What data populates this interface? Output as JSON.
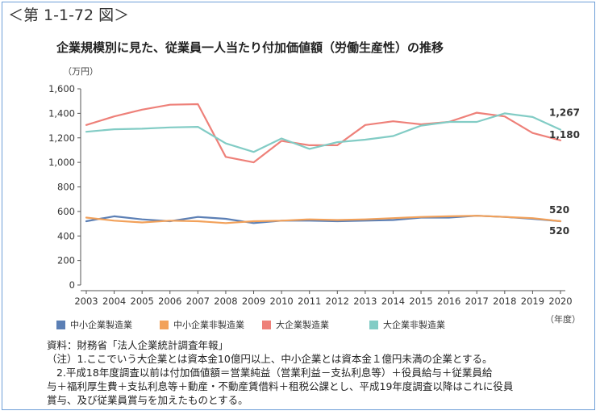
{
  "figure_number": "＜第 1-1-72 図＞",
  "notes": {
    "source": "資料：財務省「法人企業統計調査年報」",
    "note1": "（注）1.ここでいう大企業とは資本金10億円以上、中小企業とは資本金１億円未満の企業とする。",
    "note2_line1": "2.平成18年度調査以前は付加価値額＝営業純益（営業利益－支払利息等）＋役員給与＋従業員給",
    "note2_line2": "与＋福利厚生費＋支払利息等＋動産・不動産賃借料＋租税公課とし、平成19年度調査以降はこれに役員",
    "note2_line3": "賞与、及び従業員賞与を加えたものとする。"
  },
  "chart_data": {
    "type": "line",
    "title": "企業規模別に見た、従業員一人当たり付加価値額（労働生産性）の推移",
    "ylabel": "（万円）",
    "xlabel": "（年度）",
    "ylim": [
      0,
      1600
    ],
    "yticks": [
      0,
      200,
      400,
      600,
      800,
      1000,
      1200,
      1400,
      1600
    ],
    "ytick_labels": [
      "0",
      "200",
      "400",
      "600",
      "800",
      "1,000",
      "1,200",
      "1,400",
      "1,600"
    ],
    "grid": false,
    "legend_position": "bottom",
    "categories": [
      "2003",
      "2004",
      "2005",
      "2006",
      "2007",
      "2008",
      "2009",
      "2010",
      "2011",
      "2012",
      "2013",
      "2014",
      "2015",
      "2016",
      "2017",
      "2018",
      "2019",
      "2020"
    ],
    "series": [
      {
        "name": "中小企業製造業",
        "color": "#5b7fb5",
        "values": [
          520,
          560,
          535,
          520,
          555,
          540,
          505,
          525,
          525,
          520,
          525,
          530,
          550,
          550,
          565,
          555,
          540,
          520
        ],
        "end_label": "520"
      },
      {
        "name": "中小企業非製造業",
        "color": "#f2a15a",
        "values": [
          550,
          525,
          510,
          525,
          520,
          505,
          520,
          525,
          535,
          530,
          535,
          545,
          555,
          560,
          565,
          555,
          545,
          520
        ],
        "end_label": "520"
      },
      {
        "name": "大企業製造業",
        "color": "#ee8079",
        "values": [
          1305,
          1375,
          1430,
          1470,
          1475,
          1045,
          1000,
          1175,
          1140,
          1140,
          1305,
          1335,
          1310,
          1330,
          1405,
          1375,
          1240,
          1180
        ],
        "end_label": "1,180"
      },
      {
        "name": "大企業非製造業",
        "color": "#82ccc5",
        "values": [
          1250,
          1270,
          1275,
          1285,
          1290,
          1155,
          1085,
          1195,
          1110,
          1165,
          1185,
          1215,
          1300,
          1330,
          1330,
          1400,
          1370,
          1267
        ],
        "end_label": "1,267"
      }
    ]
  }
}
